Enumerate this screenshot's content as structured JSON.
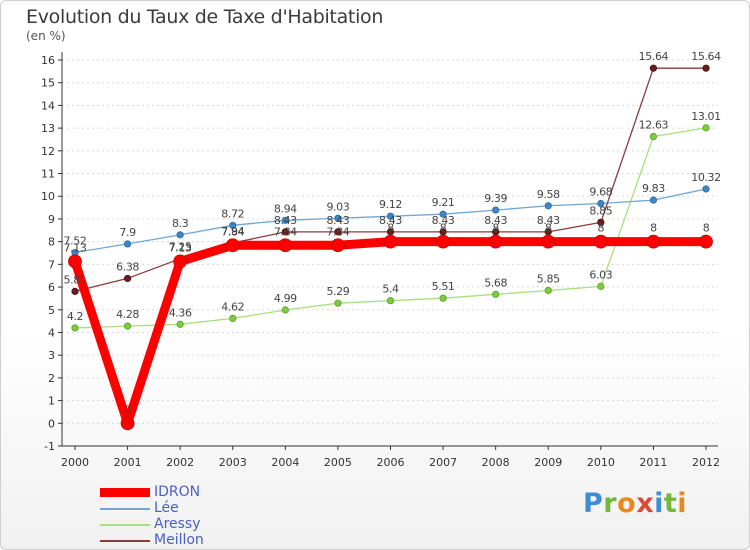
{
  "title": "Evolution du Taux de Taxe d'Habitation",
  "unit_label": "(en %)",
  "logo_text": "Proxiti",
  "colors": {
    "IDRON": "#ff0000",
    "Lée": "#6fa6d6",
    "Aressy": "#a8e07a",
    "Meillon": "#8c3a3a",
    "grid": "#d8d8d8",
    "axis": "#333333"
  },
  "chart_data": {
    "type": "line",
    "title": "Evolution du Taux de Taxe d'Habitation",
    "ylabel": "(en %)",
    "xlabel": "",
    "x": [
      "2000",
      "2001",
      "2002",
      "2003",
      "2004",
      "2005",
      "2006",
      "2007",
      "2008",
      "2009",
      "2010",
      "2011",
      "2012"
    ],
    "ylim": [
      -1,
      16
    ],
    "yticks": [
      -1,
      0,
      1,
      2,
      3,
      4,
      5,
      6,
      7,
      8,
      9,
      10,
      11,
      12,
      13,
      14,
      15,
      16
    ],
    "grid": true,
    "legend_position": "bottom-left",
    "series": [
      {
        "name": "IDRON",
        "values": [
          7.13,
          0,
          7.13,
          7.84,
          7.84,
          7.84,
          8,
          8,
          8,
          8,
          8,
          8,
          8
        ],
        "labels": [
          "7.13",
          "0",
          "7.13",
          "7.84",
          "7.84",
          "7.84",
          "8",
          "8",
          "8",
          "8",
          "8",
          "8",
          "8"
        ]
      },
      {
        "name": "Lée",
        "values": [
          7.52,
          7.9,
          8.3,
          8.72,
          8.94,
          9.03,
          9.12,
          9.21,
          9.39,
          9.58,
          9.68,
          9.83,
          10.32
        ],
        "labels": [
          "7.52",
          "7.9",
          "8.3",
          "8.72",
          "8.94",
          "9.03",
          "9.12",
          "9.21",
          "9.39",
          "9.58",
          "9.68",
          "9.83",
          "10.32"
        ]
      },
      {
        "name": "Aressy",
        "values": [
          4.2,
          4.28,
          4.36,
          4.62,
          4.99,
          5.29,
          5.4,
          5.51,
          5.68,
          5.85,
          6.03,
          12.63,
          13.01
        ],
        "labels": [
          "4.2",
          "4.28",
          "4.36",
          "4.62",
          "4.99",
          "5.29",
          "5.4",
          "5.51",
          "5.68",
          "5.85",
          "6.03",
          "12.63",
          "13.01"
        ]
      },
      {
        "name": "Meillon",
        "values": [
          5.81,
          6.38,
          7.25,
          7.94,
          8.43,
          8.43,
          8.43,
          8.43,
          8.43,
          8.43,
          8.85,
          15.64,
          15.64
        ],
        "labels": [
          "5.81",
          "6.38",
          "7.25",
          "7.94",
          "8.43",
          "8.43",
          "8.43",
          "8.43",
          "8.43",
          "8.43",
          "8.85",
          "15.64",
          "15.64"
        ]
      }
    ]
  }
}
